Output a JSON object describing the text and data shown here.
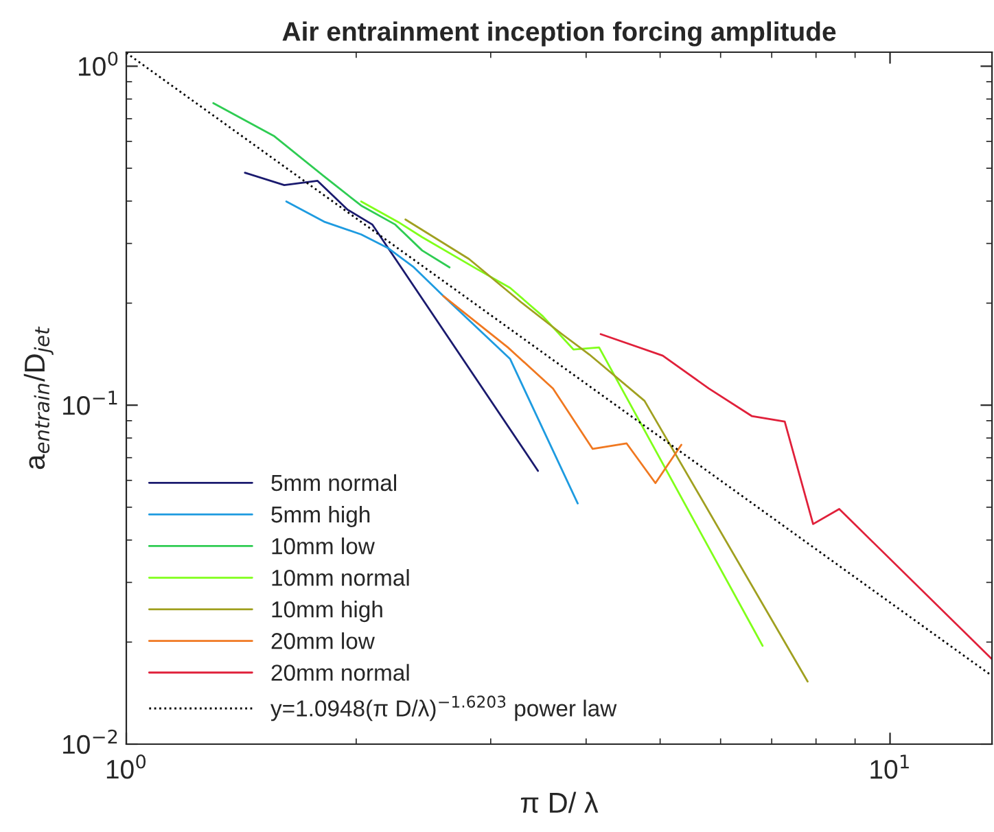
{
  "chart_data": {
    "type": "line",
    "title": "Air entrainment inception forcing amplitude",
    "xlabel": "π D/ λ",
    "ylabel": "a$_{entrain}$/D$_{jet}$",
    "log": "xy",
    "xlim": [
      1,
      13.6
    ],
    "ylim": [
      0.01,
      1.1
    ],
    "xticks": [
      {
        "value": 1,
        "label": "10$^{0}$"
      },
      {
        "value": 10,
        "label": "10$^{1}$"
      }
    ],
    "yticks": [
      {
        "value": 0.01,
        "label": "10$^{−2}$"
      },
      {
        "value": 0.1,
        "label": "10$^{−1}$"
      },
      {
        "value": 1,
        "label": "10$^{0}$"
      }
    ],
    "legend": "bottom left",
    "series": [
      {
        "name": "5mm normal",
        "color": "#1a1a6e",
        "x": [
          1.43,
          1.61,
          1.78,
          1.95,
          2.1,
          3.46
        ],
        "values": [
          0.485,
          0.446,
          0.459,
          0.377,
          0.341,
          0.064
        ]
      },
      {
        "name": "5mm high",
        "color": "#1e9be0",
        "x": [
          1.62,
          1.82,
          2.03,
          2.2,
          2.38,
          2.6,
          3.18,
          3.9
        ],
        "values": [
          0.399,
          0.347,
          0.319,
          0.291,
          0.255,
          0.21,
          0.137,
          0.0513
        ]
      },
      {
        "name": "10mm low",
        "color": "#2ecc52",
        "x": [
          1.3,
          1.56,
          1.82,
          2.03,
          2.25,
          2.44,
          2.65
        ],
        "values": [
          0.778,
          0.623,
          0.471,
          0.388,
          0.341,
          0.286,
          0.255
        ]
      },
      {
        "name": "10mm normal",
        "color": "#80ff1a",
        "x": [
          2.03,
          2.27,
          2.44,
          2.87,
          3.18,
          3.51,
          3.85,
          4.16,
          6.81
        ],
        "values": [
          0.399,
          0.347,
          0.313,
          0.253,
          0.222,
          0.183,
          0.146,
          0.148,
          0.0195
        ]
      },
      {
        "name": "10mm high",
        "color": "#a0a020",
        "x": [
          2.32,
          2.81,
          3.29,
          3.72,
          4.04,
          4.77,
          7.8
        ],
        "values": [
          0.353,
          0.27,
          0.201,
          0.162,
          0.141,
          0.103,
          0.0153
        ]
      },
      {
        "name": "20mm low",
        "color": "#f07820",
        "x": [
          2.6,
          3.16,
          3.62,
          4.08,
          4.52,
          4.93,
          5.33
        ],
        "values": [
          0.21,
          0.148,
          0.112,
          0.0743,
          0.0771,
          0.0589,
          0.0764
        ]
      },
      {
        "name": "20mm normal",
        "color": "#e0203a",
        "x": [
          4.18,
          5.04,
          5.79,
          6.59,
          7.28,
          7.93,
          8.58,
          13.6
        ],
        "values": [
          0.162,
          0.14,
          0.112,
          0.0929,
          0.0895,
          0.0446,
          0.0494,
          0.0178
        ]
      },
      {
        "name": "y=1.0948(π D/λ)$^{−1.6203}$ power law",
        "color": "#000000",
        "line_style": "dotted",
        "x": [
          1,
          13.6
        ],
        "values": [
          1.0948,
          0.0159
        ]
      }
    ]
  }
}
